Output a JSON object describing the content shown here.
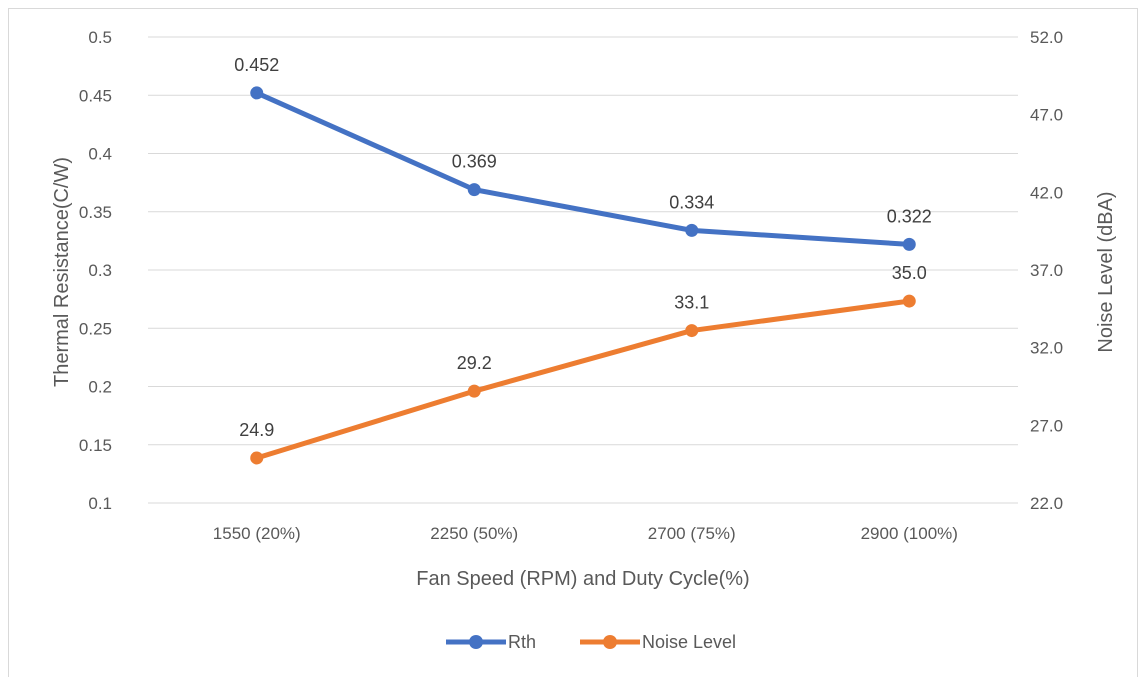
{
  "chart_data": {
    "type": "line",
    "categories": [
      "1550 (20%)",
      "2250 (50%)",
      "2700 (75%)",
      "2900 (100%)"
    ],
    "xlabel": "Fan Speed (RPM) and Duty Cycle(%)",
    "ylabel": "Thermal Resistance(C/W)",
    "y2label": "Noise Level (dBA)",
    "ylim": [
      0.1,
      0.5
    ],
    "y_ticks": [
      "0.1",
      "0.15",
      "0.2",
      "0.25",
      "0.3",
      "0.35",
      "0.4",
      "0.45",
      "0.5"
    ],
    "y2lim": [
      22.0,
      52.0
    ],
    "y2_ticks": [
      "22.0",
      "27.0",
      "32.0",
      "37.0",
      "42.0",
      "47.0",
      "52.0"
    ],
    "grid": true,
    "legend_position": "bottom",
    "series": [
      {
        "name": "Rth",
        "axis": "left",
        "color": "#4472C4",
        "values": [
          0.452,
          0.369,
          0.334,
          0.322
        ],
        "labels": [
          "0.452",
          "0.369",
          "0.334",
          "0.322"
        ]
      },
      {
        "name": "Noise Level",
        "axis": "right",
        "color": "#ED7D31",
        "values": [
          24.9,
          29.2,
          33.1,
          35.0
        ],
        "labels": [
          "24.9",
          "29.2",
          "33.1",
          "35.0"
        ]
      }
    ]
  }
}
